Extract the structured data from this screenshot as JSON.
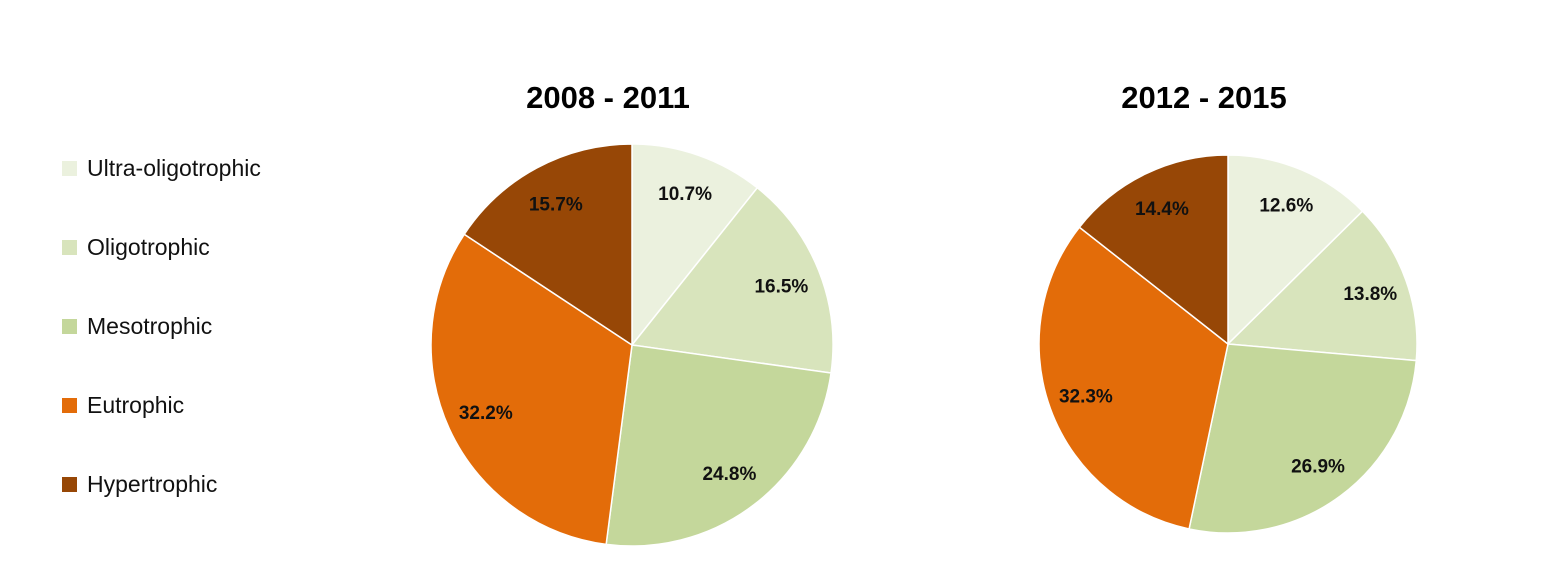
{
  "chart_data": {
    "type": "pie",
    "legend": {
      "placement": "left",
      "entries": [
        "Ultra-oligotrophic",
        "Oligotrophic",
        "Mesotrophic",
        "Eutrophic",
        "Hypertrophic"
      ]
    },
    "colors": [
      "#EBF1DE",
      "#D8E4BC",
      "#C4D79B",
      "#E36C09",
      "#974706"
    ],
    "charts": [
      {
        "title": "2008 - 2011",
        "categories": [
          "Ultra-oligotrophic",
          "Oligotrophic",
          "Mesotrophic",
          "Eutrophic",
          "Hypertrophic"
        ],
        "values": [
          10.7,
          16.5,
          24.8,
          32.2,
          15.7
        ],
        "labels": [
          "10.7%",
          "16.5%",
          "24.8%",
          "32.2%",
          "15.7%"
        ]
      },
      {
        "title": "2012 - 2015",
        "categories": [
          "Ultra-oligotrophic",
          "Oligotrophic",
          "Mesotrophic",
          "Eutrophic",
          "Hypertrophic"
        ],
        "values": [
          12.6,
          13.8,
          26.9,
          32.3,
          14.4
        ],
        "labels": [
          "12.6%",
          "13.8%",
          "26.9%",
          "32.3%",
          "14.4%"
        ]
      }
    ]
  }
}
